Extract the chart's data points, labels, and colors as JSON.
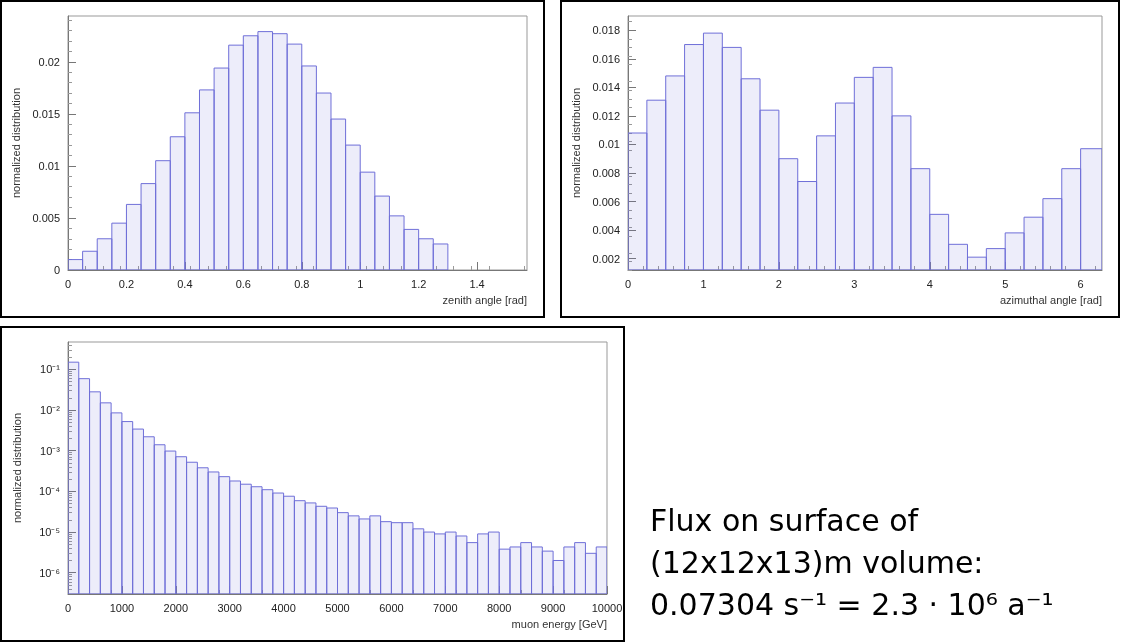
{
  "chart_data": [
    {
      "type": "histogram",
      "xlabel": "zenith angle [rad]",
      "ylabel": "normalized distribution",
      "color": "#6f6fd8",
      "bins": [
        0,
        0.05,
        0.1,
        0.15,
        0.2,
        0.25,
        0.3,
        0.35,
        0.4,
        0.45,
        0.5,
        0.55,
        0.6,
        0.65,
        0.7,
        0.75,
        0.8,
        0.85,
        0.9,
        0.95,
        1.0,
        1.05,
        1.1,
        1.15,
        1.2,
        1.25,
        1.3
      ],
      "values": [
        0.001,
        0.0018,
        0.003,
        0.0045,
        0.0063,
        0.0083,
        0.0105,
        0.0128,
        0.0151,
        0.0173,
        0.0194,
        0.0216,
        0.0225,
        0.0229,
        0.0227,
        0.0217,
        0.0196,
        0.017,
        0.0145,
        0.012,
        0.0094,
        0.0071,
        0.0052,
        0.0039,
        0.003,
        0.0025
      ],
      "xlim": [
        0,
        1.5708
      ],
      "ylim": [
        0,
        0.0244
      ],
      "xticks": [
        0,
        0.2,
        0.4,
        0.6,
        0.8,
        1,
        1.2,
        1.4
      ],
      "yticks": [
        0,
        0.005,
        0.01,
        0.015,
        0.02
      ]
    },
    {
      "type": "histogram",
      "xlabel": "azimuthal angle [rad]",
      "ylabel": "normalized distribution",
      "color": "#6f6fd8",
      "bins": [
        0,
        0.25,
        0.5,
        0.75,
        1.0,
        1.25,
        1.5,
        1.75,
        2.0,
        2.25,
        2.5,
        2.75,
        3.0,
        3.25,
        3.5,
        3.75,
        4.0,
        4.25,
        4.5,
        4.75,
        5.0,
        5.25,
        5.5,
        5.75,
        6.0,
        6.2832
      ],
      "values": [
        0.0108,
        0.0131,
        0.0148,
        0.017,
        0.0178,
        0.0168,
        0.0146,
        0.0124,
        0.009,
        0.0074,
        0.0106,
        0.0129,
        0.0147,
        0.0154,
        0.012,
        0.0083,
        0.0051,
        0.003,
        0.0021,
        0.0027,
        0.0038,
        0.0049,
        0.0062,
        0.0083,
        0.0097
      ],
      "xlim": [
        0,
        6.2832
      ],
      "ylim": [
        0.0012,
        0.019
      ],
      "xticks": [
        0,
        1,
        2,
        3,
        4,
        5,
        6
      ],
      "yticks": [
        0.002,
        0.004,
        0.006,
        0.008,
        0.01,
        0.012,
        0.014,
        0.016,
        0.018
      ]
    },
    {
      "type": "histogram",
      "xlabel": "muon energy [GeV]",
      "ylabel": "normalized distribution",
      "color": "#6f6fd8",
      "log": "y",
      "bins": [
        0,
        200,
        400,
        600,
        800,
        1000,
        1200,
        1400,
        1600,
        1800,
        2000,
        2200,
        2400,
        2600,
        2800,
        3000,
        3200,
        3400,
        3600,
        3800,
        4000,
        4200,
        4400,
        4600,
        4800,
        5000,
        5200,
        5400,
        5600,
        5800,
        6000,
        6200,
        6400,
        6600,
        6800,
        7000,
        7200,
        7400,
        7600,
        7800,
        8000,
        8200,
        8400,
        8600,
        8800,
        9000,
        9200,
        9400,
        9600,
        9800,
        10000
      ],
      "values": [
        0.15,
        0.059,
        0.028,
        0.015,
        0.0085,
        0.0052,
        0.0034,
        0.0022,
        0.0014,
        0.00098,
        0.00071,
        0.00052,
        0.00038,
        0.0003,
        0.00023,
        0.00018,
        0.00015,
        0.00013,
        0.00011,
        9.1e-05,
        7.6e-05,
        5.9e-05,
        5.2e-05,
        4.3e-05,
        3.9e-05,
        3e-05,
        2.5e-05,
        2.1e-05,
        2.5e-05,
        1.8e-05,
        1.7e-05,
        1.7e-05,
        1.2e-05,
        1e-05,
        9e-06,
        1e-05,
        8e-06,
        5.5e-06,
        9e-06,
        1e-05,
        3.8e-06,
        4.3e-06,
        5.5e-06,
        4.3e-06,
        3.4e-06,
        2e-06,
        4.3e-06,
        5.5e-06,
        3e-06,
        4.3e-06
      ],
      "xlim": [
        0,
        10000
      ],
      "ylim": [
        3e-07,
        0.47
      ],
      "xticks": [
        0,
        1000,
        2000,
        3000,
        4000,
        5000,
        6000,
        7000,
        8000,
        9000,
        10000
      ],
      "yticks": [
        {
          "value": 1e-06,
          "label": "10⁻⁶"
        },
        {
          "value": 1e-05,
          "label": "10⁻⁵"
        },
        {
          "value": 0.0001,
          "label": "10⁻⁴"
        },
        {
          "value": 0.001,
          "label": "10⁻³"
        },
        {
          "value": 0.01,
          "label": "10⁻²"
        },
        {
          "value": 0.1,
          "label": "10⁻¹"
        }
      ]
    },
    {
      "type": "other",
      "annotations": [
        "Flux on surface of",
        "(12x12x13)m volume:",
        "0.07304 s⁻¹ = 2.3 · 10⁶ a⁻¹"
      ]
    }
  ]
}
